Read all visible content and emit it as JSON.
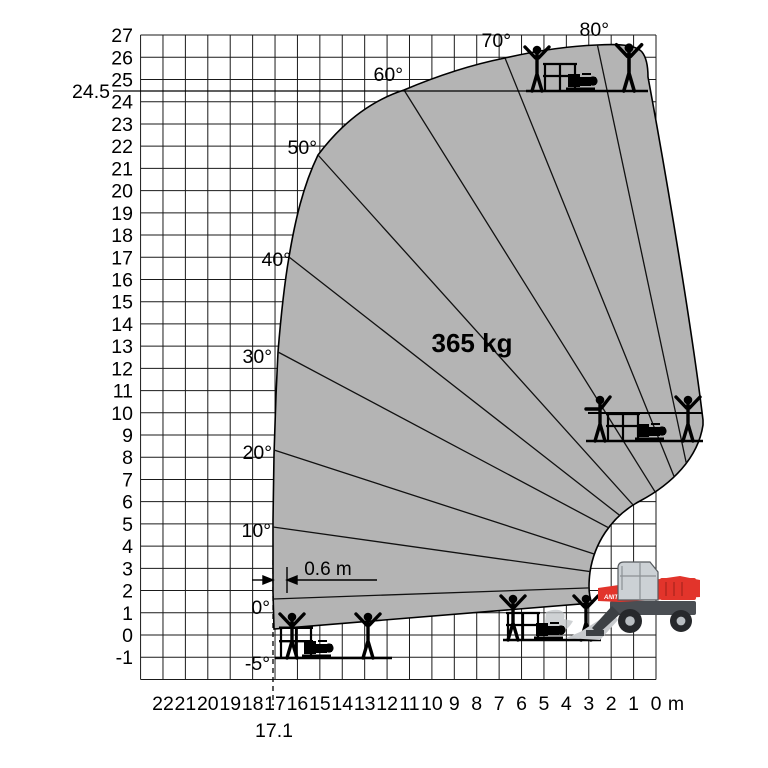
{
  "axes": {
    "y_ticks": [
      "27",
      "26",
      "25",
      "24",
      "23",
      "22",
      "21",
      "20",
      "19",
      "18",
      "17",
      "16",
      "15",
      "14",
      "13",
      "12",
      "11",
      "10",
      "9",
      "8",
      "7",
      "6",
      "5",
      "4",
      "3",
      "2",
      "1",
      "0",
      "-1"
    ],
    "x_ticks": [
      "22",
      "21",
      "20",
      "19",
      "18",
      "17",
      "16",
      "15",
      "14",
      "13",
      "12",
      "11",
      "10",
      "9",
      "8",
      "7",
      "6",
      "5",
      "4",
      "3",
      "2",
      "1",
      "0"
    ],
    "x_unit": "m",
    "max_height_label": "24.5",
    "max_reach_label": "17.1"
  },
  "angle_labels": [
    "-5°",
    "0°",
    "10°",
    "20°",
    "30°",
    "40°",
    "50°",
    "60°",
    "70°",
    "80°"
  ],
  "annotations": {
    "capacity_label": "365 kg",
    "offset_label": "0.6 m"
  },
  "machine": {
    "brand_text": "ANIT"
  },
  "chart_data": {
    "type": "area",
    "description": "Working range envelope diagram of a telescopic boom work platform",
    "x_axis": {
      "label_unit": "m",
      "tick_values": [
        22,
        21,
        20,
        19,
        18,
        17,
        16,
        15,
        14,
        13,
        12,
        11,
        10,
        9,
        8,
        7,
        6,
        5,
        4,
        3,
        2,
        1,
        0
      ],
      "direction": "values increase right-to-left",
      "range": [
        -3,
        23
      ]
    },
    "y_axis": {
      "tick_values": [
        27,
        26,
        25,
        24,
        23,
        22,
        21,
        20,
        19,
        18,
        17,
        16,
        15,
        14,
        13,
        12,
        11,
        10,
        9,
        8,
        7,
        6,
        5,
        4,
        3,
        2,
        1,
        0,
        -1
      ],
      "range": [
        -2,
        27
      ],
      "grid": true
    },
    "capacity_label": "365 kg",
    "max_platform_height_m": 24.5,
    "max_outreach_m": 17.1,
    "platform_offset_m": 0.6,
    "boom_angles_deg": [
      -5,
      0,
      10,
      20,
      30,
      40,
      50,
      60,
      70,
      80
    ],
    "envelope_outline_m": [
      [
        17.0,
        0.3
      ],
      [
        17.1,
        1.9
      ],
      [
        17.1,
        5.2
      ],
      [
        17.0,
        8.1
      ],
      [
        16.9,
        12.7
      ],
      [
        16.4,
        16.9
      ],
      [
        15.1,
        21.5
      ],
      [
        11.2,
        24.4
      ],
      [
        6.7,
        25.9
      ],
      [
        2.6,
        26.5
      ],
      [
        0.4,
        25.0
      ],
      [
        -2.1,
        10.5
      ],
      [
        -2.1,
        9.4
      ],
      [
        0.7,
        6.0
      ],
      [
        2.9,
        2.8
      ],
      [
        2.9,
        1.4
      ],
      [
        17.0,
        0.3
      ]
    ],
    "angle_line_outer_endpoints_m": {
      "0": [
        17.1,
        1.6
      ],
      "10": [
        17.1,
        4.8
      ],
      "20": [
        17.0,
        8.3
      ],
      "30": [
        16.9,
        12.7
      ],
      "40": [
        16.4,
        16.9
      ],
      "50": [
        15.1,
        21.5
      ],
      "60": [
        11.2,
        24.4
      ],
      "70": [
        6.7,
        25.9
      ],
      "80": [
        2.6,
        26.5
      ]
    },
    "work_position_markers_m": [
      {
        "x": 3.2,
        "y": 24.5
      },
      {
        "x": 0.5,
        "y": 8.7
      },
      {
        "x": 4.7,
        "y": -0.2
      },
      {
        "x": 14.5,
        "y": -1.0
      }
    ]
  }
}
